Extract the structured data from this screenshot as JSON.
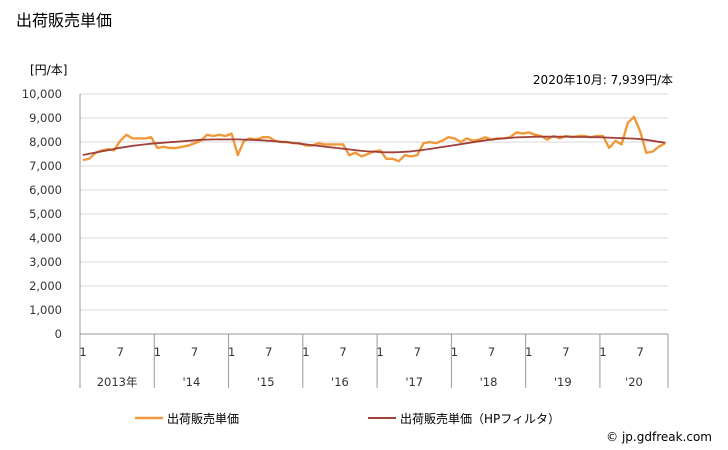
{
  "chart_data": {
    "type": "line",
    "title": "出荷販売単価",
    "ylabel": "[円/本]",
    "annotation": "2020年10月: 7,939円/本",
    "ylim": [
      0,
      10000
    ],
    "yticks": [
      0,
      1000,
      2000,
      3000,
      4000,
      5000,
      6000,
      7000,
      8000,
      9000,
      10000
    ],
    "ytick_labels": [
      "0",
      "1,000",
      "2,000",
      "3,000",
      "4,000",
      "5,000",
      "6,000",
      "7,000",
      "8,000",
      "9,000",
      "10,000"
    ],
    "x_month_labels": [
      "1",
      "7",
      "1",
      "7",
      "1",
      "7",
      "1",
      "7",
      "1",
      "7",
      "1",
      "7",
      "1",
      "7",
      "1",
      "7"
    ],
    "years": [
      "2013年",
      "'14",
      "'15",
      "'16",
      "'17",
      "'18",
      "'19",
      "'20"
    ],
    "grid": "horizontal",
    "legend_position": "bottom",
    "series": [
      {
        "name": "出荷販売単価",
        "color": "#f0993a",
        "values": [
          7250,
          7300,
          7550,
          7650,
          7700,
          7650,
          8050,
          8300,
          8150,
          8150,
          8150,
          8200,
          7750,
          7800,
          7750,
          7750,
          7800,
          7850,
          7950,
          8050,
          8300,
          8250,
          8300,
          8250,
          8350,
          7450,
          8050,
          8150,
          8100,
          8200,
          8200,
          8050,
          8000,
          8000,
          7950,
          7950,
          7850,
          7850,
          7950,
          7900,
          7900,
          7900,
          7900,
          7450,
          7550,
          7400,
          7500,
          7600,
          7650,
          7300,
          7300,
          7200,
          7450,
          7400,
          7450,
          7950,
          8000,
          7950,
          8050,
          8200,
          8150,
          8000,
          8150,
          8050,
          8100,
          8200,
          8100,
          8150,
          8150,
          8200,
          8400,
          8350,
          8400,
          8300,
          8250,
          8100,
          8250,
          8150,
          8250,
          8200,
          8250,
          8250,
          8200,
          8250,
          8250,
          7750,
          8050,
          7900,
          8800,
          9050,
          8450,
          7550,
          7600,
          7800,
          7939
        ]
      },
      {
        "name": "出荷販売単価（HPフィルタ）",
        "color": "#a0413a",
        "values": [
          7460,
          7510,
          7560,
          7610,
          7660,
          7710,
          7760,
          7800,
          7840,
          7870,
          7900,
          7930,
          7950,
          7970,
          7990,
          8010,
          8030,
          8050,
          8070,
          8090,
          8100,
          8110,
          8110,
          8110,
          8110,
          8110,
          8100,
          8090,
          8080,
          8070,
          8050,
          8030,
          8010,
          7990,
          7960,
          7930,
          7900,
          7870,
          7840,
          7810,
          7780,
          7750,
          7720,
          7690,
          7660,
          7630,
          7610,
          7600,
          7580,
          7570,
          7570,
          7580,
          7590,
          7610,
          7640,
          7670,
          7710,
          7750,
          7790,
          7830,
          7870,
          7910,
          7950,
          7990,
          8030,
          8070,
          8100,
          8130,
          8150,
          8170,
          8190,
          8200,
          8210,
          8220,
          8220,
          8220,
          8220,
          8220,
          8220,
          8220,
          8210,
          8210,
          8200,
          8200,
          8190,
          8180,
          8170,
          8160,
          8150,
          8140,
          8120,
          8090,
          8050,
          8010,
          7970
        ]
      }
    ]
  },
  "footer": {
    "source": "© jp.gdfreak.com"
  }
}
